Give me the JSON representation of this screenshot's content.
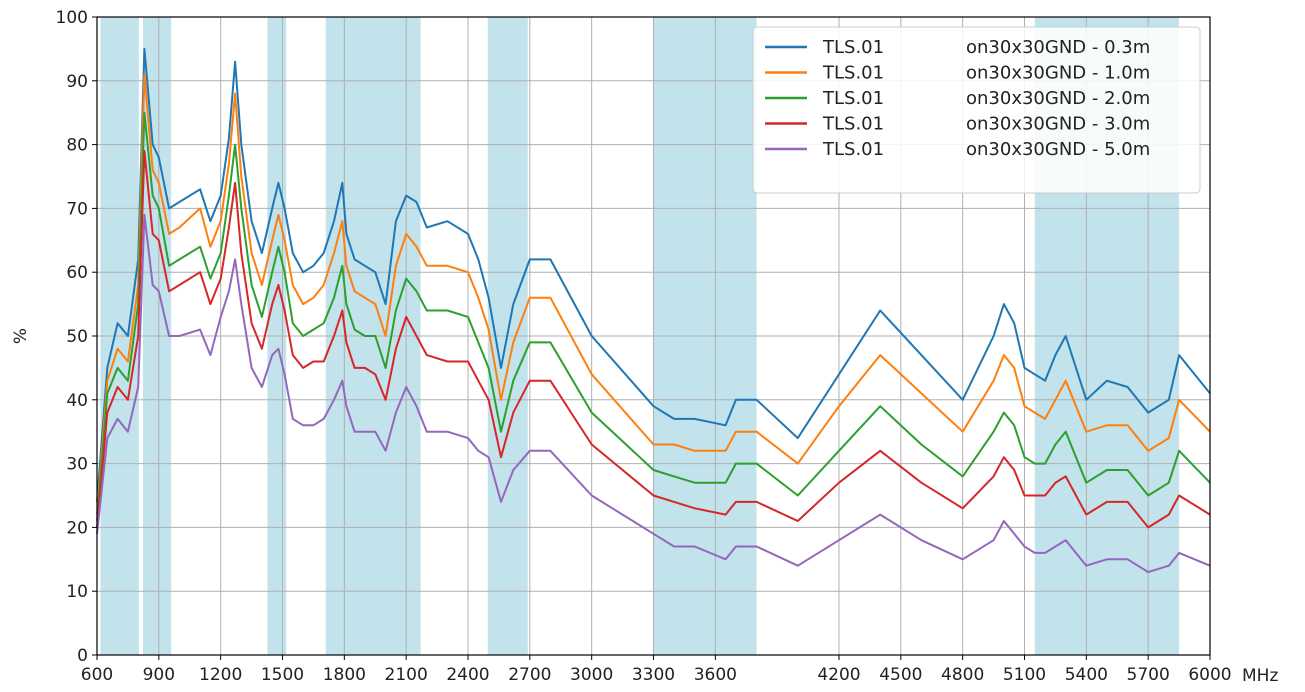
{
  "chart_data": {
    "type": "line",
    "title": "",
    "xlabel": "",
    "ylabel": "%",
    "x_unit": "MHz",
    "xlim": [
      600,
      6000
    ],
    "ylim": [
      0,
      100
    ],
    "grid": true,
    "legend_position": "top-right",
    "x_ticks": [
      "600",
      "900",
      "1200",
      "1500",
      "1800",
      "2100",
      "2400",
      "2700",
      "3000",
      "3300",
      "3600",
      "4200",
      "4500",
      "4800",
      "5100",
      "5400",
      "5700",
      "6000"
    ],
    "x_ticks_positions": [
      600,
      900,
      1200,
      1500,
      1800,
      2100,
      2400,
      2700,
      3000,
      3300,
      3600,
      4200,
      4500,
      4800,
      5100,
      5400,
      5700,
      6000
    ],
    "y_ticks": [
      0,
      10,
      20,
      30,
      40,
      50,
      60,
      70,
      80,
      90,
      100
    ],
    "shaded_bands": [
      [
        617,
        803
      ],
      [
        823,
        960
      ],
      [
        1427,
        1518
      ],
      [
        1710,
        2170
      ],
      [
        2496,
        2690
      ],
      [
        3300,
        3800
      ],
      [
        5150,
        5850
      ]
    ],
    "band_color": "#add8e6",
    "series": [
      {
        "name": "TLS.01",
        "label_suffix": "on30x30GND - 0.3m",
        "color": "#1f77b4",
        "x": [
          600,
          650,
          700,
          750,
          800,
          830,
          870,
          900,
          950,
          1000,
          1100,
          1150,
          1200,
          1240,
          1270,
          1300,
          1350,
          1400,
          1450,
          1480,
          1510,
          1550,
          1600,
          1650,
          1700,
          1750,
          1790,
          1810,
          1850,
          1900,
          1950,
          2000,
          2050,
          2100,
          2150,
          2200,
          2300,
          2400,
          2450,
          2500,
          2560,
          2620,
          2700,
          2800,
          3000,
          3300,
          3400,
          3500,
          3650,
          3700,
          3800,
          4000,
          4200,
          4400,
          4600,
          4800,
          4950,
          5000,
          5050,
          5100,
          5150,
          5200,
          5250,
          5300,
          5400,
          5500,
          5600,
          5700,
          5800,
          5850,
          6000
        ],
        "y": [
          24,
          45,
          52,
          50,
          62,
          95,
          80,
          78,
          70,
          71,
          73,
          68,
          72,
          81,
          93,
          80,
          68,
          63,
          70,
          74,
          70,
          63,
          60,
          61,
          63,
          68,
          74,
          66,
          62,
          61,
          60,
          55,
          68,
          72,
          71,
          67,
          68,
          66,
          62,
          56,
          45,
          55,
          62,
          62,
          50,
          39,
          37,
          37,
          36,
          40,
          40,
          34,
          44,
          54,
          47,
          40,
          50,
          55,
          52,
          45,
          44,
          43,
          47,
          50,
          40,
          43,
          42,
          38,
          40,
          47,
          41
        ]
      },
      {
        "name": "TLS.01",
        "label_suffix": "on30x30GND - 1.0m",
        "color": "#ff7f0e",
        "x": [
          600,
          650,
          700,
          750,
          800,
          830,
          870,
          900,
          950,
          1000,
          1100,
          1150,
          1200,
          1240,
          1270,
          1300,
          1350,
          1400,
          1450,
          1480,
          1510,
          1550,
          1600,
          1650,
          1700,
          1750,
          1790,
          1810,
          1850,
          1900,
          1950,
          2000,
          2050,
          2100,
          2150,
          2200,
          2300,
          2400,
          2450,
          2500,
          2560,
          2620,
          2700,
          2800,
          3000,
          3300,
          3400,
          3500,
          3650,
          3700,
          3800,
          4000,
          4200,
          4400,
          4600,
          4800,
          4950,
          5000,
          5050,
          5100,
          5150,
          5200,
          5250,
          5300,
          5400,
          5500,
          5600,
          5700,
          5800,
          5850,
          6000
        ],
        "y": [
          22,
          43,
          48,
          46,
          58,
          91,
          76,
          74,
          66,
          67,
          70,
          64,
          68,
          77,
          88,
          75,
          63,
          58,
          65,
          69,
          65,
          58,
          55,
          56,
          58,
          63,
          68,
          61,
          57,
          56,
          55,
          50,
          61,
          66,
          64,
          61,
          61,
          60,
          56,
          51,
          40,
          49,
          56,
          56,
          44,
          33,
          33,
          32,
          32,
          35,
          35,
          30,
          39,
          47,
          41,
          35,
          43,
          47,
          45,
          39,
          38,
          37,
          40,
          43,
          35,
          36,
          36,
          32,
          34,
          40,
          35
        ]
      },
      {
        "name": "TLS.01",
        "label_suffix": "on30x30GND - 2.0m",
        "color": "#2ca02c",
        "x": [
          600,
          650,
          700,
          750,
          800,
          830,
          870,
          900,
          950,
          1000,
          1100,
          1150,
          1200,
          1240,
          1270,
          1300,
          1350,
          1400,
          1450,
          1480,
          1510,
          1550,
          1600,
          1650,
          1700,
          1750,
          1790,
          1810,
          1850,
          1900,
          1950,
          2000,
          2050,
          2100,
          2150,
          2200,
          2300,
          2400,
          2450,
          2500,
          2560,
          2620,
          2700,
          2800,
          3000,
          3300,
          3400,
          3500,
          3650,
          3700,
          3800,
          4000,
          4200,
          4400,
          4600,
          4800,
          4950,
          5000,
          5050,
          5100,
          5150,
          5200,
          5250,
          5300,
          5400,
          5500,
          5600,
          5700,
          5800,
          5850,
          6000
        ],
        "y": [
          21,
          41,
          45,
          43,
          55,
          85,
          72,
          70,
          61,
          62,
          64,
          59,
          63,
          72,
          80,
          70,
          58,
          53,
          60,
          64,
          60,
          52,
          50,
          51,
          52,
          56,
          61,
          55,
          51,
          50,
          50,
          45,
          54,
          59,
          57,
          54,
          54,
          53,
          49,
          45,
          35,
          43,
          49,
          49,
          38,
          29,
          28,
          27,
          27,
          30,
          30,
          25,
          32,
          39,
          33,
          28,
          35,
          38,
          36,
          31,
          30,
          30,
          33,
          35,
          27,
          29,
          29,
          25,
          27,
          32,
          27
        ]
      },
      {
        "name": "TLS.01",
        "label_suffix": "on30x30GND - 3.0m",
        "color": "#d62728",
        "x": [
          600,
          650,
          700,
          750,
          800,
          830,
          870,
          900,
          950,
          1000,
          1100,
          1150,
          1200,
          1240,
          1270,
          1300,
          1350,
          1400,
          1450,
          1480,
          1510,
          1550,
          1600,
          1650,
          1700,
          1750,
          1790,
          1810,
          1850,
          1900,
          1950,
          2000,
          2050,
          2100,
          2150,
          2200,
          2300,
          2400,
          2450,
          2500,
          2560,
          2620,
          2700,
          2800,
          3000,
          3300,
          3400,
          3500,
          3650,
          3700,
          3800,
          4000,
          4200,
          4400,
          4600,
          4800,
          4950,
          5000,
          5050,
          5100,
          5150,
          5200,
          5250,
          5300,
          5400,
          5500,
          5600,
          5700,
          5800,
          5850,
          6000
        ],
        "y": [
          20,
          38,
          42,
          40,
          50,
          79,
          66,
          65,
          57,
          58,
          60,
          55,
          59,
          67,
          74,
          63,
          52,
          48,
          55,
          58,
          54,
          47,
          45,
          46,
          46,
          50,
          54,
          49,
          45,
          45,
          44,
          40,
          48,
          53,
          50,
          47,
          46,
          46,
          43,
          40,
          31,
          38,
          43,
          43,
          33,
          25,
          24,
          23,
          22,
          24,
          24,
          21,
          27,
          32,
          27,
          23,
          28,
          31,
          29,
          25,
          25,
          25,
          27,
          28,
          22,
          24,
          24,
          20,
          22,
          25,
          22
        ]
      },
      {
        "name": "TLS.01",
        "label_suffix": "on30x30GND - 5.0m",
        "color": "#9467bd",
        "x": [
          600,
          650,
          700,
          750,
          800,
          830,
          870,
          900,
          950,
          1000,
          1100,
          1150,
          1200,
          1240,
          1270,
          1300,
          1350,
          1400,
          1450,
          1480,
          1510,
          1550,
          1600,
          1650,
          1700,
          1750,
          1790,
          1810,
          1850,
          1900,
          1950,
          2000,
          2050,
          2100,
          2150,
          2200,
          2300,
          2400,
          2450,
          2500,
          2560,
          2620,
          2700,
          2800,
          3000,
          3300,
          3400,
          3500,
          3650,
          3700,
          3800,
          4000,
          4200,
          4400,
          4600,
          4800,
          4950,
          5000,
          5050,
          5100,
          5150,
          5200,
          5250,
          5300,
          5400,
          5500,
          5600,
          5700,
          5800,
          5850,
          6000
        ],
        "y": [
          19,
          34,
          37,
          35,
          42,
          69,
          58,
          57,
          50,
          50,
          51,
          47,
          53,
          57,
          62,
          55,
          45,
          42,
          47,
          48,
          44,
          37,
          36,
          36,
          37,
          40,
          43,
          39,
          35,
          35,
          35,
          32,
          38,
          42,
          39,
          35,
          35,
          34,
          32,
          31,
          24,
          29,
          32,
          32,
          25,
          19,
          17,
          17,
          15,
          17,
          17,
          14,
          18,
          22,
          18,
          15,
          18,
          21,
          19,
          17,
          16,
          16,
          17,
          18,
          14,
          15,
          15,
          13,
          14,
          16,
          14
        ]
      }
    ]
  }
}
